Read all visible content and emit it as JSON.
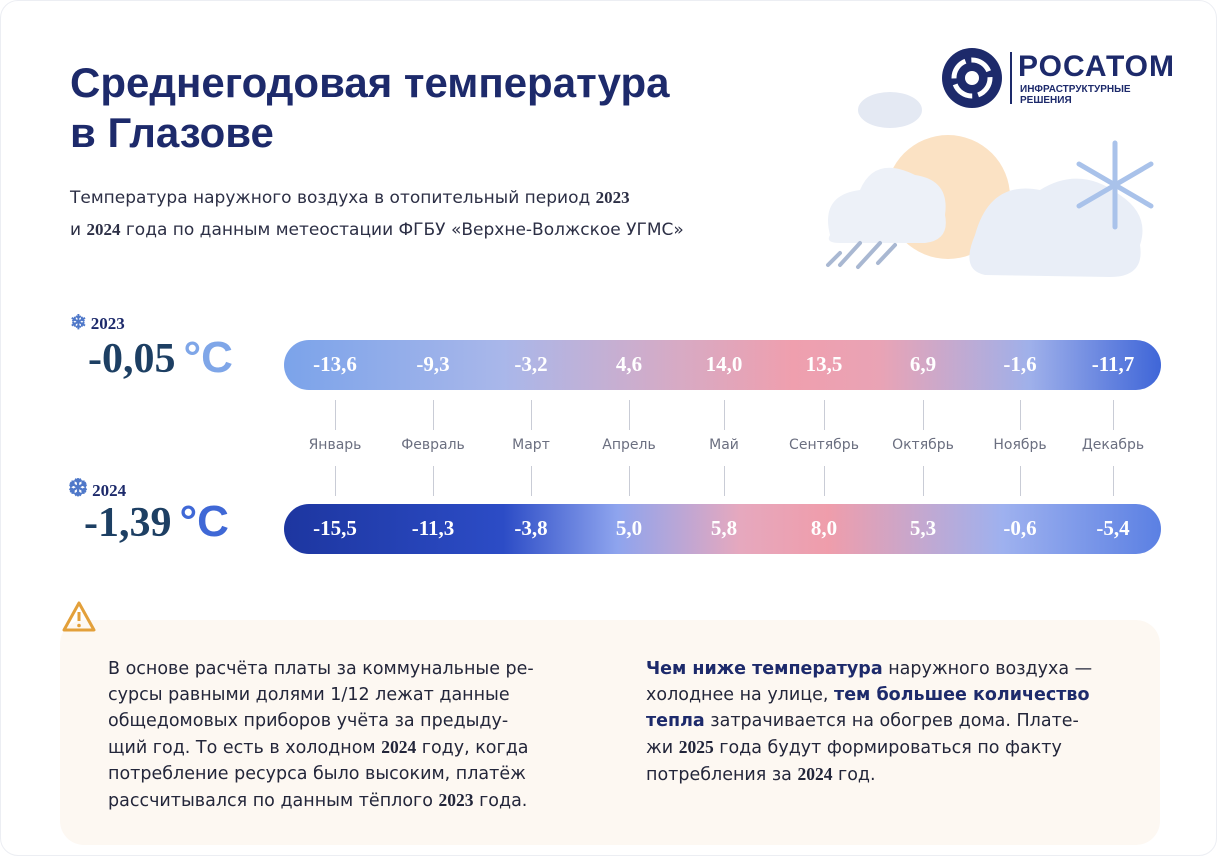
{
  "header": {
    "title": [
      "Среднегодовая температура",
      "в Глазове"
    ],
    "subtitle": [
      [
        {
          "text": "Температура наружного воздуха в отопительный период "
        },
        {
          "text": "2023",
          "serif": true
        }
      ],
      [
        {
          "text": "и "
        },
        {
          "text": "2024",
          "serif": true
        },
        {
          "text": " года по данным метеостации ФГБУ «Верхне-Волжское УГМС»"
        }
      ]
    ]
  },
  "logo": {
    "name": "РОСАТОМ",
    "tagline": [
      "ИНФРАСТРУКТУРНЫЕ",
      "РЕШЕНИЯ"
    ]
  },
  "months": [
    "Январь",
    "Февраль",
    "Март",
    "Апрель",
    "Май",
    "Сентябрь",
    "Октябрь",
    "Ноябрь",
    "Декабрь"
  ],
  "rows": [
    {
      "year": "2023",
      "average": "-0,05",
      "unit": "°C",
      "values": [
        "-13,6",
        "-9,3",
        "-3,2",
        "4,6",
        "14,0",
        "13,5",
        "6,9",
        "-1,6",
        "-11,7"
      ]
    },
    {
      "year": "2024",
      "average": "-1,39",
      "unit": "°C",
      "values": [
        "-15,5",
        "-11,3",
        "-3,8",
        "5,0",
        "5,8",
        "8,0",
        "5,3",
        "-0,6",
        "-5,4"
      ]
    }
  ],
  "note": {
    "left": [
      [
        {
          "text": "В основе расчёта платы за коммунальные ре-"
        }
      ],
      [
        {
          "text": "сурсы равными долями 1/12 лежат данные"
        }
      ],
      [
        {
          "text": "общедомовых приборов учёта за предыду-"
        }
      ],
      [
        {
          "text": "щий год. То есть в холодном "
        },
        {
          "text": "2024",
          "serif": true
        },
        {
          "text": " году, когда"
        }
      ],
      [
        {
          "text": "потребление ресурса было высоким, платёж"
        }
      ],
      [
        {
          "text": "рассчитывался по данным тёплого "
        },
        {
          "text": "2023",
          "serif": true
        },
        {
          "text": " года."
        }
      ]
    ],
    "right": [
      [
        {
          "text": "Чем ниже температура",
          "bold": true
        },
        {
          "text": " наружного воздуха —"
        }
      ],
      [
        {
          "text": "холоднее на улице, "
        },
        {
          "text": "тем большее количество",
          "bold": true
        }
      ],
      [
        {
          "text": "тепла",
          "bold": true
        },
        {
          "text": " затрачивается на обогрев дома. Плате-"
        }
      ],
      [
        {
          "text": "жи "
        },
        {
          "text": "2025",
          "serif": true
        },
        {
          "text": " года будут формироваться по факту"
        }
      ],
      [
        {
          "text": "потребления за "
        },
        {
          "text": "2024",
          "serif": true
        },
        {
          "text": " год."
        }
      ]
    ]
  }
}
